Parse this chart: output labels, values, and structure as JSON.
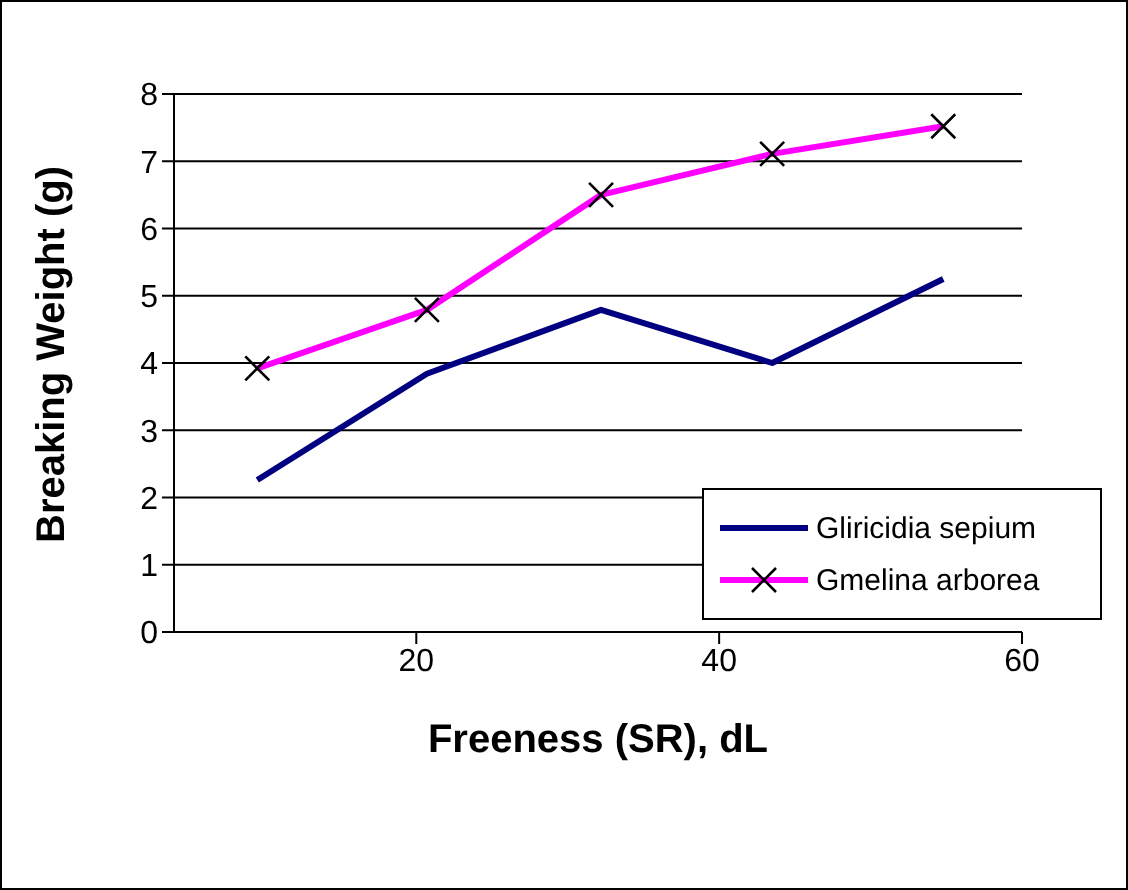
{
  "chart_data": {
    "type": "line",
    "xlabel": "Freeness (SR), dL",
    "ylabel": "Breaking Weight (g)",
    "xlim": [
      4,
      60
    ],
    "xticks": [
      20,
      40,
      60
    ],
    "ylim": [
      0,
      8
    ],
    "yticks": [
      0,
      1,
      2,
      3,
      4,
      5,
      6,
      7,
      8
    ],
    "grid": "y",
    "legend": "right",
    "series": [
      {
        "name": "Gliricidia sepium",
        "color": "#000080",
        "marker": "none",
        "x": [
          9.5,
          20.7,
          32.2,
          43.5,
          54.8
        ],
        "values": [
          2.26,
          3.84,
          4.79,
          4.0,
          5.25
        ]
      },
      {
        "name": "Gmelina arborea",
        "color": "#ff00ff",
        "marker": "cross",
        "x": [
          9.5,
          20.7,
          32.2,
          43.5,
          54.8
        ],
        "values": [
          3.92,
          4.79,
          6.5,
          7.11,
          7.52
        ]
      }
    ]
  }
}
